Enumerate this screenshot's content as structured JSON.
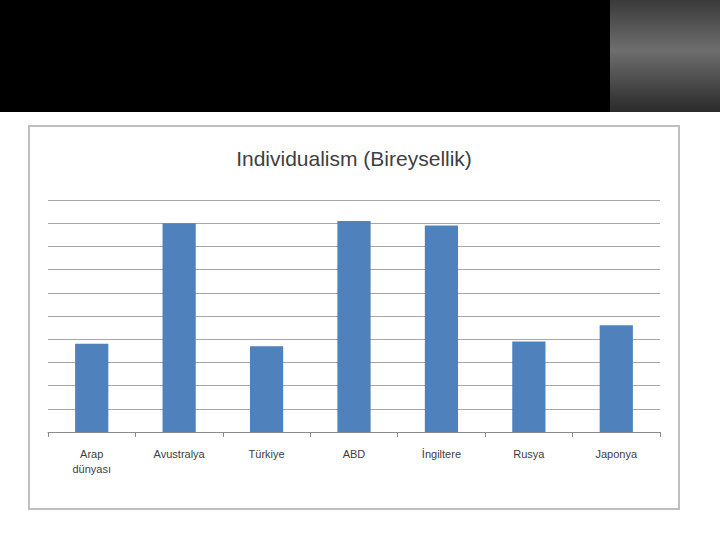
{
  "chart_data": {
    "type": "bar",
    "title": "Individualism (Bireysellik)",
    "categories": [
      "Arap dünyası",
      "Avustralya",
      "Türkiye",
      "ABD",
      "İngiltere",
      "Rusya",
      "Japonya"
    ],
    "values": [
      38,
      90,
      37,
      91,
      89,
      39,
      46
    ],
    "color": "#4f81bd",
    "ylim": [
      0,
      100
    ],
    "yticks": [
      0,
      10,
      20,
      30,
      40,
      50,
      60,
      70,
      80,
      90,
      100
    ],
    "grid": true,
    "tick_labels": "x"
  }
}
